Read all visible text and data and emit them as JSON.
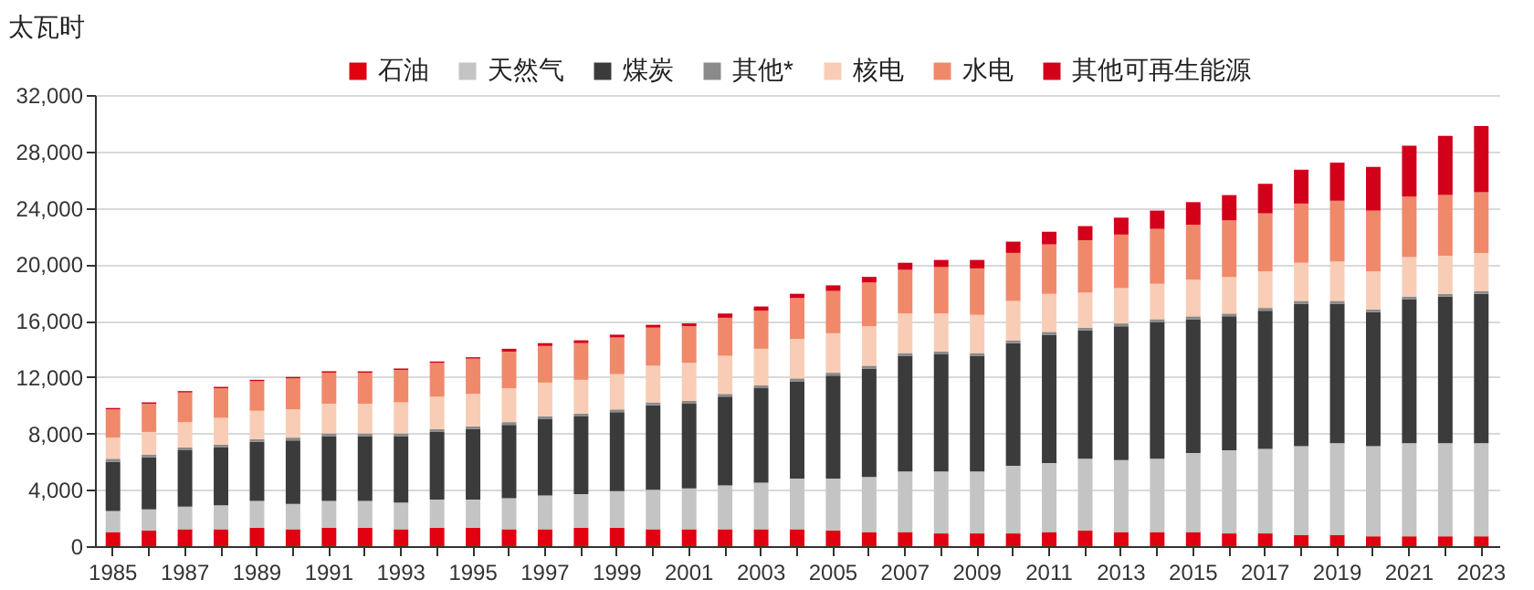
{
  "chart_data": {
    "type": "bar",
    "stacked": true,
    "ylabel": "太瓦时",
    "categories": [
      "1985",
      null,
      "1987",
      null,
      "1989",
      null,
      "1991",
      null,
      "1993",
      null,
      "1995",
      null,
      "1997",
      null,
      "1999",
      null,
      "2001",
      null,
      "2003",
      null,
      "2005",
      null,
      "2007",
      null,
      "2009",
      null,
      "2011",
      null,
      "2013",
      null,
      "2015",
      null,
      "2017",
      null,
      "2019",
      null,
      "2021",
      null,
      "2023"
    ],
    "series": [
      {
        "name": "石油",
        "color": "#e0000f",
        "values": [
          1000,
          1100,
          1200,
          1200,
          1300,
          1200,
          1300,
          1300,
          1200,
          1300,
          1300,
          1200,
          1200,
          1300,
          1300,
          1200,
          1200,
          1200,
          1200,
          1200,
          1100,
          1000,
          1000,
          900,
          900,
          900,
          1000,
          1100,
          1000,
          1000,
          1000,
          900,
          900,
          800,
          800,
          700,
          700,
          700,
          700
        ]
      },
      {
        "name": "天然气",
        "color": "#c4c4c4",
        "values": [
          1500,
          1500,
          1600,
          1700,
          1900,
          1800,
          1900,
          1900,
          1900,
          2000,
          2000,
          2200,
          2400,
          2400,
          2600,
          2800,
          2900,
          3100,
          3300,
          3600,
          3700,
          3900,
          4300,
          4400,
          4400,
          4800,
          4900,
          5100,
          5100,
          5200,
          5600,
          5900,
          6000,
          6300,
          6500,
          6400,
          6600,
          6600,
          6600
        ]
      },
      {
        "name": "煤炭",
        "color": "#3b3b3b",
        "values": [
          3500,
          3700,
          4000,
          4100,
          4200,
          4500,
          4600,
          4600,
          4700,
          4800,
          5000,
          5200,
          5400,
          5500,
          5600,
          6000,
          6000,
          6300,
          6700,
          6900,
          7300,
          7700,
          8200,
          8300,
          8200,
          8700,
          9100,
          9100,
          9500,
          9700,
          9500,
          9500,
          9800,
          10100,
          9900,
          9500,
          10200,
          10400,
          10600
        ]
      },
      {
        "name": "其他*",
        "color": "#8a8a8a",
        "values": [
          200,
          200,
          200,
          200,
          200,
          200,
          200,
          200,
          200,
          200,
          200,
          200,
          200,
          200,
          200,
          200,
          200,
          200,
          200,
          200,
          200,
          200,
          200,
          200,
          200,
          200,
          200,
          200,
          200,
          200,
          200,
          200,
          200,
          200,
          200,
          200,
          200,
          200,
          200
        ]
      },
      {
        "name": "核电",
        "color": "#f9cdb5",
        "values": [
          1500,
          1600,
          1800,
          1900,
          2000,
          2000,
          2100,
          2100,
          2200,
          2300,
          2300,
          2400,
          2400,
          2400,
          2500,
          2600,
          2700,
          2700,
          2600,
          2800,
          2800,
          2800,
          2800,
          2700,
          2700,
          2800,
          2700,
          2500,
          2500,
          2500,
          2600,
          2600,
          2600,
          2700,
          2800,
          2700,
          2800,
          2700,
          2700
        ]
      },
      {
        "name": "水电",
        "color": "#f0896a",
        "values": [
          2000,
          2000,
          2100,
          2100,
          2100,
          2200,
          2200,
          2200,
          2300,
          2400,
          2500,
          2600,
          2600,
          2600,
          2600,
          2700,
          2600,
          2700,
          2700,
          2900,
          3000,
          3100,
          3100,
          3300,
          3300,
          3400,
          3500,
          3700,
          3800,
          3900,
          3900,
          4000,
          4100,
          4200,
          4300,
          4300,
          4300,
          4300,
          4300
        ]
      },
      {
        "name": "其他可再生能源",
        "color": "#d30019",
        "values": [
          100,
          100,
          100,
          100,
          100,
          100,
          100,
          100,
          100,
          100,
          100,
          200,
          200,
          200,
          200,
          200,
          200,
          300,
          300,
          300,
          400,
          400,
          500,
          500,
          600,
          800,
          900,
          1000,
          1200,
          1300,
          1600,
          1800,
          2100,
          2400,
          2700,
          3100,
          3600,
          4200,
          4700
        ]
      }
    ],
    "ylim": [
      0,
      32000
    ],
    "yticks": [
      {
        "value": 0,
        "label": "0"
      },
      {
        "value": 4000,
        "label": "4,000"
      },
      {
        "value": 8000,
        "label": "8,000"
      },
      {
        "value": 12000,
        "label": "12,000"
      },
      {
        "value": 16000,
        "label": "16,000"
      },
      {
        "value": 20000,
        "label": "20,000"
      },
      {
        "value": 24000,
        "label": "24,000"
      },
      {
        "value": 28000,
        "label": "28,000"
      },
      {
        "value": 32000,
        "label": "32,000"
      }
    ],
    "grid": "y",
    "legend": "top"
  }
}
